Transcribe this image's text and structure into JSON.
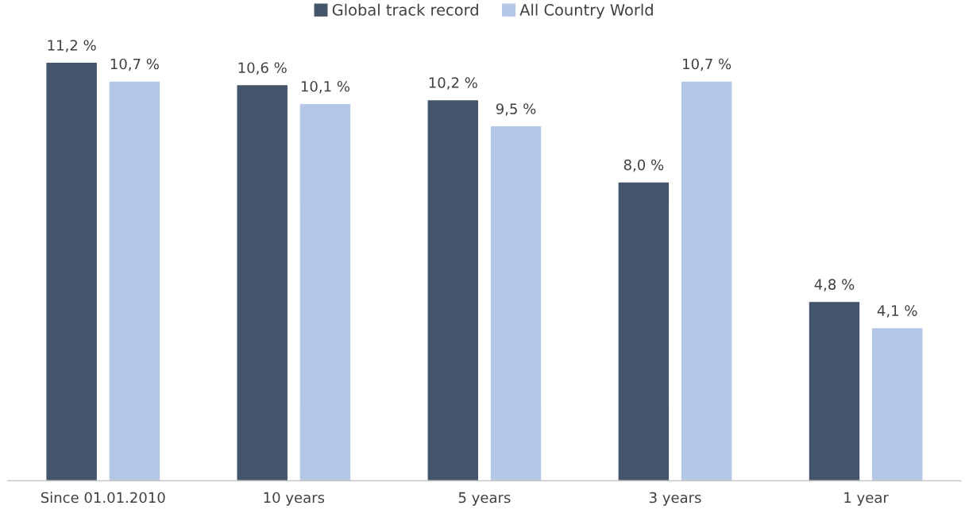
{
  "chart_data": {
    "type": "bar",
    "categories": [
      "Since 01.01.2010",
      "10 years",
      "5 years",
      "3 years",
      "1 year"
    ],
    "series": [
      {
        "name": "Global track record",
        "color": "#44546a",
        "values": [
          11.2,
          10.6,
          10.2,
          8.0,
          4.8
        ],
        "value_labels": [
          "11,2 %",
          "10,6 %",
          "10,2 %",
          "8,0 %",
          "4,8 %"
        ]
      },
      {
        "name": "All Country World",
        "color": "#b4c7e7",
        "values": [
          10.7,
          10.1,
          9.5,
          10.7,
          4.1
        ],
        "value_labels": [
          "10,7 %",
          "10,1 %",
          "9,5 %",
          "10,7 %",
          "4,1 %"
        ]
      }
    ],
    "legend": "top",
    "grid": false
  }
}
